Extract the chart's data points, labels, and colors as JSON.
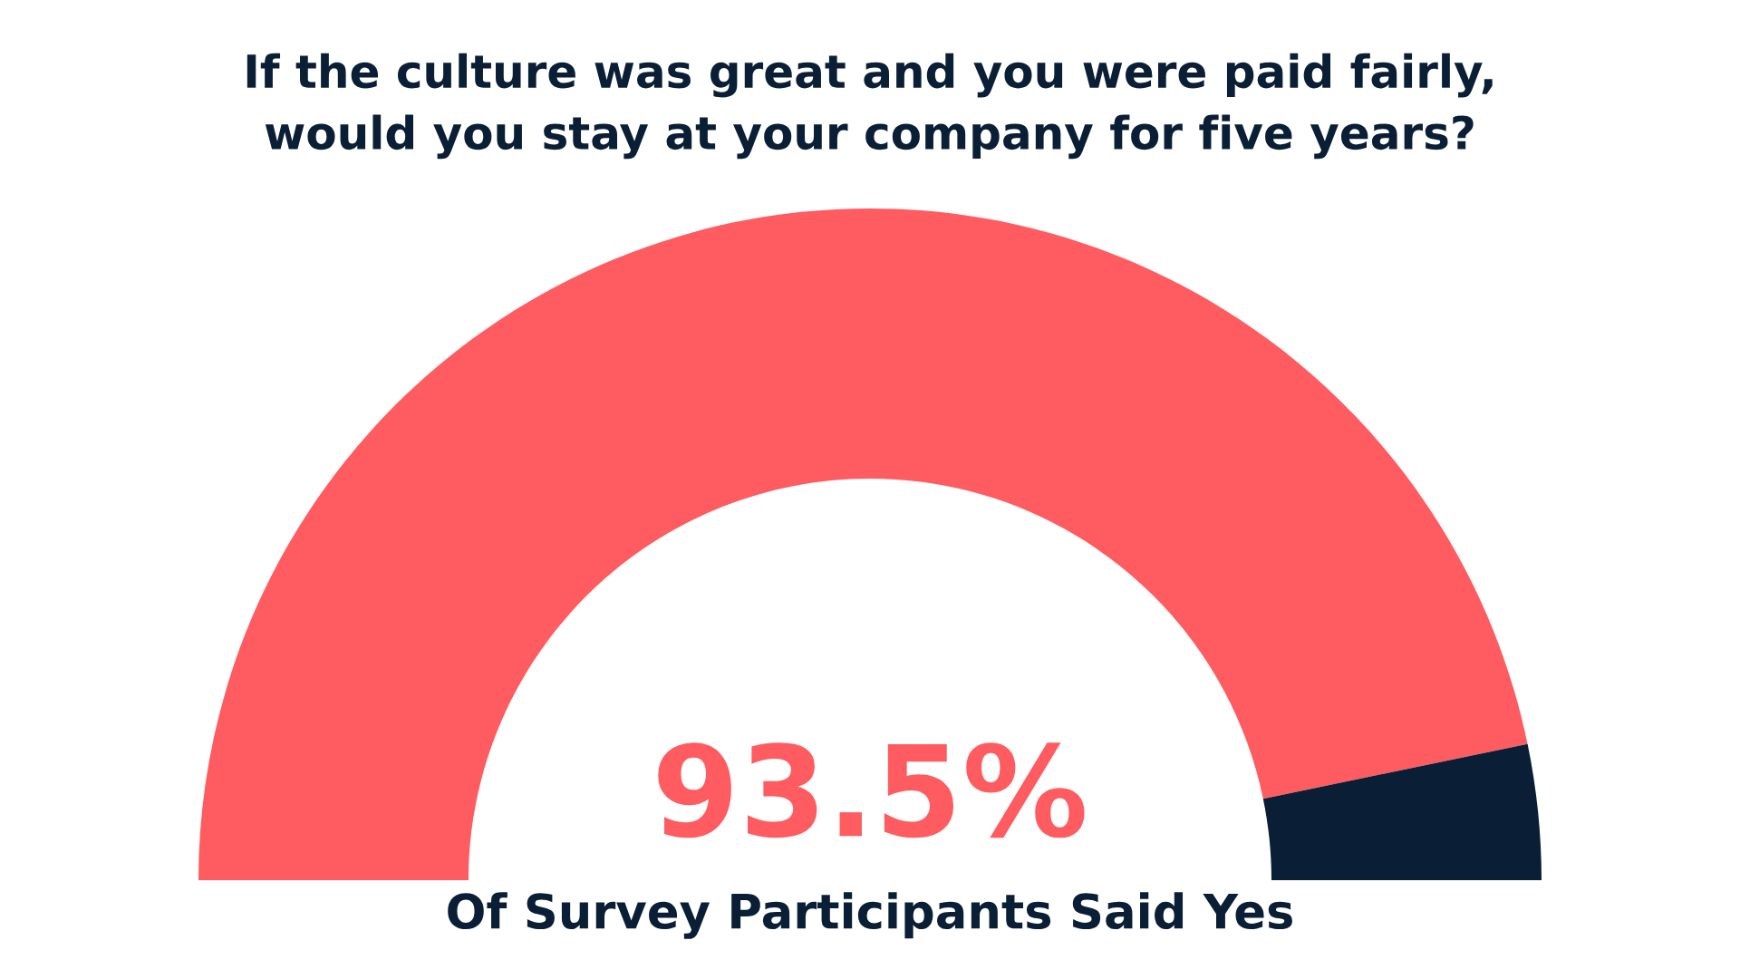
{
  "chart_data": {
    "type": "donut",
    "title": "If the culture was great and you were paid fairly,\nwould you stay at your company for five years?",
    "categories": [
      null,
      null
    ],
    "values": [
      93.5,
      6.5
    ],
    "colors": [
      "#ff5c61",
      "#0a1f35"
    ],
    "value_labels": [
      "93.5%",
      null
    ],
    "annotations": [
      "Of Survey Participants Said Yes"
    ]
  }
}
